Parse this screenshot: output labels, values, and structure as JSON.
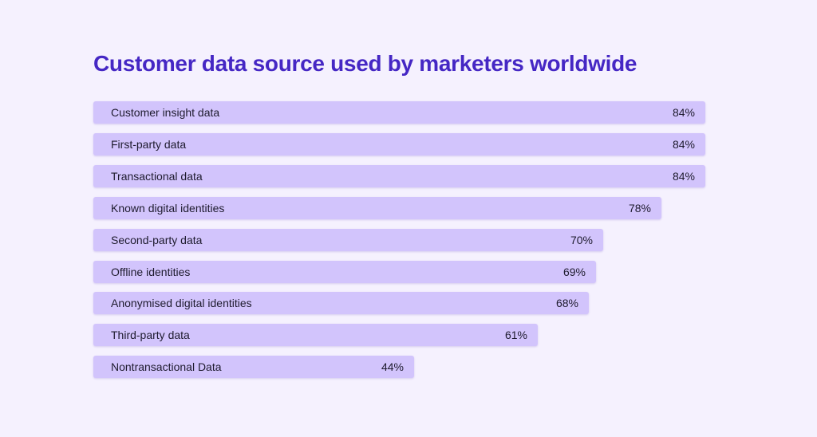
{
  "colors": {
    "background": "#f5f1fe",
    "title": "#4527c4",
    "bar": "#d2c4fc",
    "text": "#1e1b2e"
  },
  "chart_data": {
    "type": "bar",
    "orientation": "horizontal",
    "title": "Customer data source used by marketers worldwide",
    "xlabel": "",
    "ylabel": "",
    "xlim": [
      0,
      84
    ],
    "value_suffix": "%",
    "categories": [
      "Customer insight data",
      "First-party data",
      "Transactional data",
      "Known digital identities",
      "Second-party data",
      "Offline identities",
      "Anonymised digital identities",
      "Third-party data",
      "Nontransactional Data"
    ],
    "values": [
      84,
      84,
      84,
      78,
      70,
      69,
      68,
      61,
      44
    ],
    "value_labels": [
      "84%",
      "84%",
      "84%",
      "78%",
      "70%",
      "69%",
      "68%",
      "61%",
      "44%"
    ],
    "grid": false,
    "legend": "none"
  }
}
